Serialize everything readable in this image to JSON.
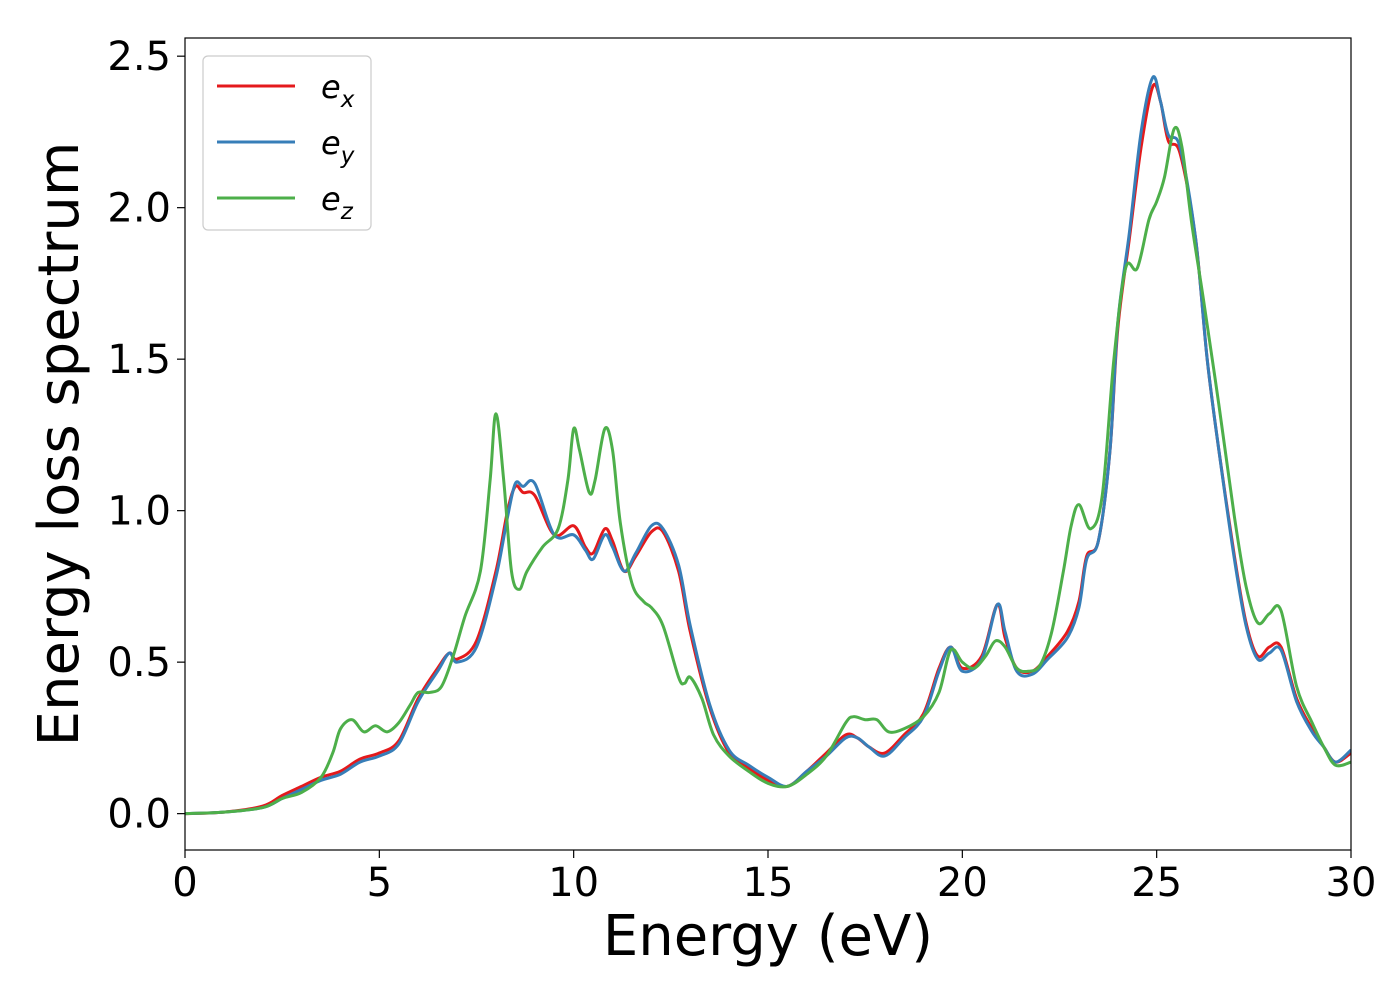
{
  "chart_data": {
    "type": "line",
    "xlabel": "Energy (eV)",
    "ylabel": "Energy loss spectrum",
    "xlim": [
      0,
      30
    ],
    "ylim": [
      -0.12,
      2.56
    ],
    "xticks": [
      0,
      5,
      10,
      15,
      20,
      25,
      30
    ],
    "xtick_labels": [
      "0",
      "5",
      "10",
      "15",
      "20",
      "25",
      "30"
    ],
    "yticks": [
      0.0,
      0.5,
      1.0,
      1.5,
      2.0,
      2.5
    ],
    "ytick_labels": [
      "0.0",
      "0.5",
      "1.0",
      "1.5",
      "2.0",
      "2.5"
    ],
    "grid": false,
    "legend_position": "upper-left",
    "series": [
      {
        "name": "e_x",
        "label_main": "e",
        "label_sub": "x",
        "color": "#e41a1c",
        "x": [
          0,
          1,
          2,
          2.5,
          3,
          3.5,
          4,
          4.5,
          5,
          5.5,
          6,
          6.5,
          6.8,
          7,
          7.5,
          8,
          8.3,
          8.5,
          8.7,
          9,
          9.5,
          10,
          10.3,
          10.5,
          10.8,
          11,
          11.3,
          11.6,
          12,
          12.3,
          12.7,
          13,
          13.5,
          14,
          14.5,
          15,
          15.5,
          16,
          16.5,
          17,
          17.3,
          17.6,
          18,
          18.5,
          19,
          19.4,
          19.7,
          20,
          20.5,
          20.9,
          21.1,
          21.4,
          21.8,
          22.2,
          22.7,
          23,
          23.2,
          23.5,
          23.8,
          24,
          24.3,
          24.6,
          24.9,
          25.1,
          25.3,
          25.6,
          26,
          26.3,
          26.6,
          27,
          27.3,
          27.6,
          27.9,
          28.2,
          28.6,
          29,
          29.3,
          29.6,
          30
        ],
        "y": [
          0,
          0.005,
          0.025,
          0.06,
          0.09,
          0.12,
          0.14,
          0.18,
          0.2,
          0.24,
          0.38,
          0.48,
          0.53,
          0.51,
          0.57,
          0.8,
          1.0,
          1.08,
          1.06,
          1.05,
          0.92,
          0.95,
          0.88,
          0.86,
          0.94,
          0.9,
          0.8,
          0.85,
          0.93,
          0.93,
          0.8,
          0.6,
          0.35,
          0.2,
          0.15,
          0.11,
          0.09,
          0.14,
          0.2,
          0.26,
          0.25,
          0.22,
          0.2,
          0.26,
          0.33,
          0.48,
          0.55,
          0.48,
          0.52,
          0.69,
          0.58,
          0.48,
          0.47,
          0.52,
          0.6,
          0.7,
          0.85,
          0.9,
          1.2,
          1.6,
          1.9,
          2.2,
          2.4,
          2.35,
          2.22,
          2.18,
          1.9,
          1.5,
          1.2,
          0.85,
          0.63,
          0.52,
          0.55,
          0.55,
          0.38,
          0.28,
          0.22,
          0.17,
          0.2
        ]
      },
      {
        "name": "e_y",
        "label_main": "e",
        "label_sub": "y",
        "color": "#377eb8",
        "x": [
          0,
          1,
          2,
          2.5,
          3,
          3.5,
          4,
          4.5,
          5,
          5.5,
          6,
          6.5,
          6.8,
          7,
          7.5,
          8,
          8.3,
          8.5,
          8.7,
          9,
          9.5,
          10,
          10.3,
          10.5,
          10.8,
          11,
          11.3,
          11.6,
          12,
          12.3,
          12.7,
          13,
          13.5,
          14,
          14.5,
          15,
          15.5,
          16,
          16.5,
          17,
          17.3,
          17.6,
          18,
          18.5,
          19,
          19.4,
          19.7,
          20,
          20.5,
          20.9,
          21.1,
          21.4,
          21.8,
          22.2,
          22.7,
          23,
          23.2,
          23.5,
          23.8,
          24,
          24.3,
          24.6,
          24.9,
          25.1,
          25.3,
          25.6,
          26,
          26.3,
          26.6,
          27,
          27.3,
          27.6,
          27.9,
          28.2,
          28.6,
          29,
          29.3,
          29.6,
          30
        ],
        "y": [
          0,
          0.005,
          0.02,
          0.05,
          0.08,
          0.11,
          0.13,
          0.17,
          0.19,
          0.23,
          0.37,
          0.47,
          0.53,
          0.5,
          0.55,
          0.78,
          0.98,
          1.09,
          1.08,
          1.09,
          0.92,
          0.92,
          0.87,
          0.84,
          0.92,
          0.88,
          0.8,
          0.86,
          0.95,
          0.94,
          0.82,
          0.62,
          0.36,
          0.21,
          0.16,
          0.12,
          0.09,
          0.14,
          0.19,
          0.25,
          0.25,
          0.22,
          0.19,
          0.25,
          0.32,
          0.47,
          0.55,
          0.47,
          0.51,
          0.69,
          0.6,
          0.47,
          0.46,
          0.51,
          0.58,
          0.68,
          0.84,
          0.9,
          1.2,
          1.62,
          1.92,
          2.25,
          2.43,
          2.35,
          2.24,
          2.2,
          1.9,
          1.5,
          1.2,
          0.84,
          0.62,
          0.51,
          0.53,
          0.54,
          0.37,
          0.27,
          0.22,
          0.17,
          0.21
        ]
      },
      {
        "name": "e_z",
        "label_main": "e",
        "label_sub": "z",
        "color": "#4daf4a",
        "x": [
          0,
          1,
          2,
          2.5,
          3,
          3.5,
          3.8,
          4,
          4.3,
          4.6,
          4.9,
          5.2,
          5.5,
          5.8,
          6,
          6.3,
          6.6,
          6.9,
          7.2,
          7.6,
          7.85,
          8,
          8.2,
          8.4,
          8.6,
          8.8,
          9.2,
          9.6,
          9.85,
          10,
          10.15,
          10.4,
          10.55,
          10.8,
          11,
          11.2,
          11.5,
          11.8,
          12,
          12.3,
          12.7,
          12.85,
          13,
          13.3,
          13.6,
          14,
          14.5,
          15,
          15.5,
          16,
          16.5,
          17,
          17.2,
          17.5,
          17.8,
          18.1,
          18.5,
          19,
          19.4,
          19.7,
          20,
          20.3,
          20.6,
          20.85,
          21.1,
          21.4,
          21.7,
          22,
          22.3,
          22.6,
          22.8,
          23,
          23.3,
          23.6,
          23.9,
          24.2,
          24.5,
          24.8,
          25,
          25.2,
          25.45,
          25.65,
          25.9,
          26.2,
          26.6,
          27,
          27.3,
          27.6,
          27.9,
          28.2,
          28.6,
          29,
          29.3,
          29.6,
          30
        ],
        "y": [
          0,
          0.005,
          0.02,
          0.05,
          0.07,
          0.12,
          0.2,
          0.28,
          0.31,
          0.27,
          0.29,
          0.27,
          0.3,
          0.36,
          0.4,
          0.4,
          0.42,
          0.52,
          0.65,
          0.8,
          1.1,
          1.32,
          1.1,
          0.8,
          0.74,
          0.8,
          0.88,
          0.94,
          1.1,
          1.27,
          1.2,
          1.06,
          1.1,
          1.27,
          1.2,
          0.96,
          0.76,
          0.7,
          0.68,
          0.62,
          0.45,
          0.43,
          0.45,
          0.38,
          0.26,
          0.19,
          0.14,
          0.1,
          0.09,
          0.13,
          0.19,
          0.3,
          0.32,
          0.31,
          0.31,
          0.27,
          0.28,
          0.32,
          0.4,
          0.54,
          0.5,
          0.48,
          0.52,
          0.57,
          0.55,
          0.48,
          0.47,
          0.49,
          0.6,
          0.8,
          0.95,
          1.02,
          0.94,
          1.05,
          1.5,
          1.8,
          1.8,
          1.96,
          2.02,
          2.1,
          2.26,
          2.2,
          1.95,
          1.7,
          1.35,
          0.98,
          0.75,
          0.63,
          0.66,
          0.67,
          0.42,
          0.3,
          0.22,
          0.16,
          0.17
        ]
      }
    ]
  }
}
